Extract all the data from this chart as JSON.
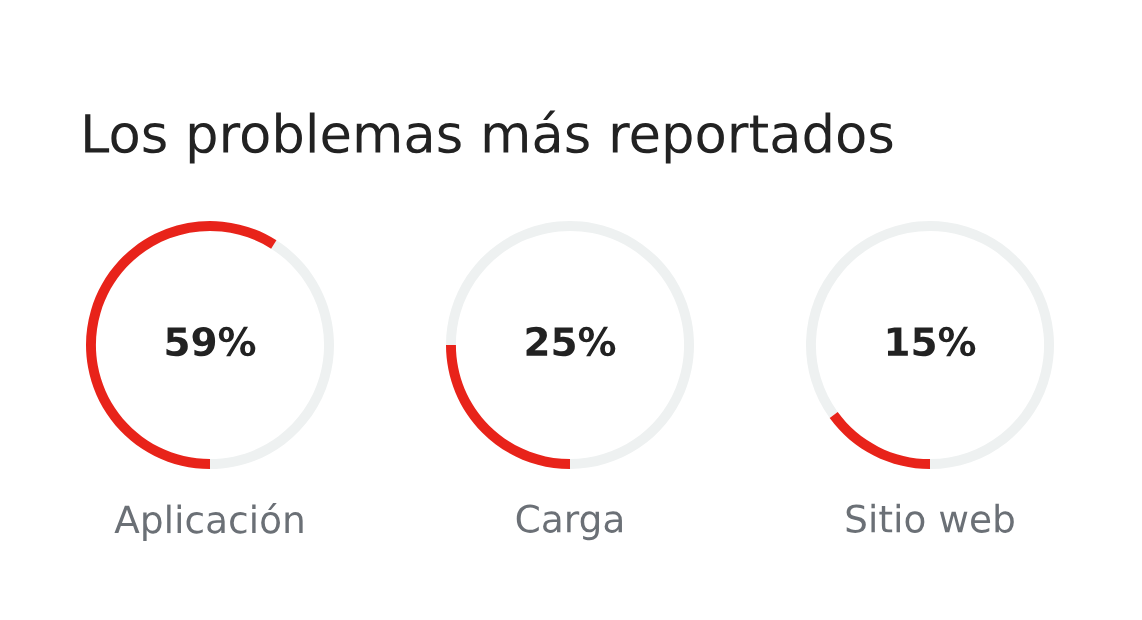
{
  "chart_data": [
    {
      "type": "donut",
      "title": "Los problemas más reportados",
      "categories": [
        "Aplicación",
        null
      ],
      "values": [
        59,
        41
      ],
      "colors": [
        "#e8231a",
        "#eef1f1"
      ],
      "annotations": [
        "59%"
      ]
    },
    {
      "type": "donut",
      "categories": [
        "Carga",
        null
      ],
      "values": [
        25,
        75
      ],
      "colors": [
        "#e8231a",
        "#eef1f1"
      ],
      "annotations": [
        "25%"
      ]
    },
    {
      "type": "donut",
      "categories": [
        "Sitio web",
        null
      ],
      "values": [
        15,
        85
      ],
      "colors": [
        "#e8231a",
        "#eef1f1"
      ],
      "annotations": [
        "15%"
      ]
    }
  ]
}
